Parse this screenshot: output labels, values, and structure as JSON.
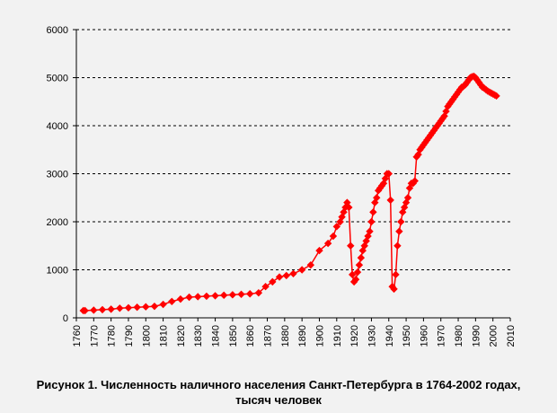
{
  "colors": {
    "series": "#ff0000",
    "grid": "#000000",
    "background": "#f2f2f2"
  },
  "caption": {
    "line1": "Рисунок 1. Численность наличного населения Санкт-Петербурга в 1764-2002 годах,",
    "line2": "тысяч человек"
  },
  "chart_data": {
    "type": "line",
    "marker": "diamond",
    "grid": "horizontal-dashed",
    "legend": "none",
    "xlim": [
      1760,
      2010
    ],
    "ylim": [
      0,
      6000
    ],
    "x_ticks": [
      "1760",
      "1770",
      "1780",
      "1790",
      "1800",
      "1810",
      "1820",
      "1830",
      "1840",
      "1850",
      "1860",
      "1870",
      "1880",
      "1890",
      "1900",
      "1910",
      "1920",
      "1930",
      "1940",
      "1950",
      "1960",
      "1970",
      "1980",
      "1990",
      "2000",
      "2010"
    ],
    "y_ticks": [
      "0",
      "1000",
      "2000",
      "3000",
      "4000",
      "5000",
      "6000"
    ],
    "series": [
      {
        "x": [
          1764,
          1765,
          1770,
          1775,
          1780,
          1785,
          1790,
          1795,
          1800,
          1805,
          1810,
          1815,
          1820,
          1825,
          1830,
          1835,
          1840,
          1845,
          1850,
          1855,
          1860,
          1865,
          1869,
          1873,
          1877,
          1881,
          1885,
          1890,
          1895,
          1900,
          1905,
          1908,
          1910,
          1912,
          1913,
          1914,
          1915,
          1916,
          1917,
          1918,
          1919,
          1920,
          1921,
          1922,
          1923,
          1924,
          1925,
          1926,
          1927,
          1928,
          1929,
          1930,
          1931,
          1932,
          1933,
          1934,
          1935,
          1936,
          1937,
          1938,
          1939,
          1940,
          1941,
          1942,
          1943,
          1944,
          1945,
          1946,
          1947,
          1948,
          1949,
          1950,
          1951,
          1952,
          1953,
          1954,
          1955,
          1956,
          1957,
          1958,
          1959,
          1960,
          1961,
          1962,
          1963,
          1964,
          1965,
          1966,
          1967,
          1968,
          1969,
          1970,
          1971,
          1972,
          1973,
          1974,
          1975,
          1976,
          1977,
          1978,
          1979,
          1980,
          1981,
          1982,
          1983,
          1984,
          1985,
          1986,
          1987,
          1988,
          1989,
          1990,
          1991,
          1992,
          1993,
          1994,
          1995,
          1996,
          1997,
          1998,
          1999,
          2000,
          2001,
          2002
        ],
        "y": [
          150,
          150,
          160,
          170,
          180,
          200,
          210,
          220,
          230,
          240,
          280,
          340,
          390,
          430,
          440,
          450,
          460,
          470,
          480,
          490,
          500,
          520,
          650,
          750,
          850,
          880,
          920,
          1000,
          1100,
          1400,
          1550,
          1700,
          1900,
          2000,
          2100,
          2200,
          2300,
          2400,
          2300,
          1500,
          900,
          750,
          800,
          950,
          1100,
          1250,
          1400,
          1500,
          1600,
          1700,
          1800,
          2000,
          2200,
          2400,
          2500,
          2650,
          2700,
          2750,
          2800,
          2900,
          3000,
          3000,
          2450,
          650,
          600,
          900,
          1500,
          1800,
          2000,
          2200,
          2300,
          2400,
          2500,
          2700,
          2800,
          2800,
          2850,
          3350,
          3400,
          3500,
          3550,
          3600,
          3650,
          3700,
          3750,
          3800,
          3850,
          3900,
          3950,
          4000,
          4050,
          4100,
          4150,
          4200,
          4300,
          4400,
          4450,
          4500,
          4550,
          4600,
          4650,
          4700,
          4750,
          4800,
          4820,
          4850,
          4900,
          4950,
          5000,
          5020,
          5030,
          5000,
          4950,
          4900,
          4850,
          4800,
          4780,
          4750,
          4720,
          4700,
          4680,
          4660,
          4640,
          4620
        ]
      }
    ]
  }
}
